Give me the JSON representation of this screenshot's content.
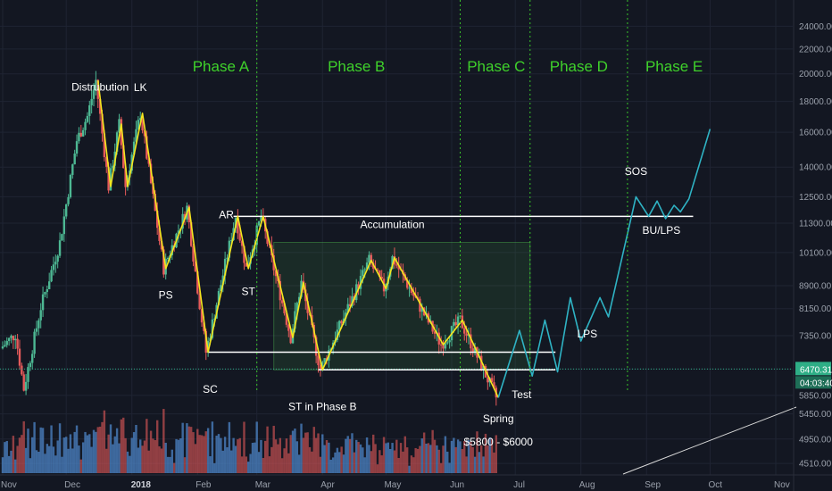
{
  "colors": {
    "background": "#131722",
    "grid": "#1f2433",
    "up_candle": "#4db893",
    "down_candle": "#e65a5a",
    "zigzag": "#f5e61e",
    "projection": "#2fb3c4",
    "phase_text": "#3fd12b",
    "phase_divider": "#39c42a",
    "level_line": "#ffffff",
    "axis_text": "#9aa0ab",
    "price_tag_bg": "#2eae86",
    "price_tag_text": "#ffffff"
  },
  "chart_data": {
    "type": "candlestick",
    "instrument_price_label": "6470.31",
    "countdown_label": "04:03:40",
    "y_scale": "log",
    "ylim": [
      4300,
      25000
    ],
    "y_ticks": [
      "24000.00",
      "22000.00",
      "20000.00",
      "18000.00",
      "16000.00",
      "14000.00",
      "12500.00",
      "11300.00",
      "10100.00",
      "8900.00",
      "8150.00",
      "7350.00",
      "6470.31",
      "5850.00",
      "5450.00",
      "4950.00",
      "4510.00"
    ],
    "x_ticks": [
      "Nov",
      "Dec",
      "2018",
      "Feb",
      "Mar",
      "Apr",
      "May",
      "Jun",
      "Jul",
      "Aug",
      "Sep",
      "Oct",
      "Nov"
    ],
    "phases": [
      "Phase A",
      "Phase B",
      "Phase C",
      "Phase D",
      "Phase E"
    ],
    "annotations": {
      "distribution": "Distrubution",
      "lk": "LK",
      "ps": "PS",
      "ar": "AR",
      "st": "ST",
      "sc": "SC",
      "st_phase_b": "ST in Phase B",
      "accumulation": "Accumulation",
      "spring": "Spring",
      "test": "Test",
      "range_note": "$5800 - $6000",
      "lps": "LPS",
      "sos": "SOS",
      "bu_lps": "BU/LPS"
    },
    "levels": {
      "resistance": 11600,
      "support_upper": 6900,
      "support_lower": 6450,
      "current": 6470.31
    },
    "zigzag_path": [
      {
        "t": "2017-12-16",
        "price": 19500
      },
      {
        "t": "2017-12-22",
        "price": 13000
      },
      {
        "t": "2017-12-27",
        "price": 16500
      },
      {
        "t": "2017-12-30",
        "price": 13000
      },
      {
        "t": "2018-01-06",
        "price": 17200
      },
      {
        "t": "2018-01-17",
        "price": 9500
      },
      {
        "t": "2018-01-28",
        "price": 12000
      },
      {
        "t": "2018-02-06",
        "price": 6900
      },
      {
        "t": "2018-02-20",
        "price": 11600
      },
      {
        "t": "2018-02-25",
        "price": 9500
      },
      {
        "t": "2018-03-04",
        "price": 11600
      },
      {
        "t": "2018-03-18",
        "price": 7300
      },
      {
        "t": "2018-03-23",
        "price": 9000
      },
      {
        "t": "2018-04-01",
        "price": 6450
      },
      {
        "t": "2018-04-24",
        "price": 9800
      },
      {
        "t": "2018-05-01",
        "price": 8800
      },
      {
        "t": "2018-05-05",
        "price": 9900
      },
      {
        "t": "2018-05-28",
        "price": 7100
      },
      {
        "t": "2018-06-06",
        "price": 7800
      },
      {
        "t": "2018-06-23",
        "price": 5800
      }
    ],
    "projection_path": [
      {
        "t": "2018-06-23",
        "price": 5800
      },
      {
        "t": "2018-07-03",
        "price": 7500
      },
      {
        "t": "2018-07-09",
        "price": 6300
      },
      {
        "t": "2018-07-15",
        "price": 7800
      },
      {
        "t": "2018-07-21",
        "price": 6400
      },
      {
        "t": "2018-07-27",
        "price": 8500
      },
      {
        "t": "2018-08-01",
        "price": 7200
      },
      {
        "t": "2018-08-10",
        "price": 8500
      },
      {
        "t": "2018-08-14",
        "price": 7900
      },
      {
        "t": "2018-08-27",
        "price": 12500
      },
      {
        "t": "2018-09-02",
        "price": 11600
      },
      {
        "t": "2018-09-06",
        "price": 12300
      },
      {
        "t": "2018-09-10",
        "price": 11500
      },
      {
        "t": "2018-09-14",
        "price": 12100
      },
      {
        "t": "2018-09-17",
        "price": 11800
      },
      {
        "t": "2018-09-21",
        "price": 12400
      },
      {
        "t": "2018-10-01",
        "price": 16200
      }
    ],
    "phase_boundaries": [
      "2018-03-01",
      "2018-06-05",
      "2018-07-08",
      "2018-08-23"
    ],
    "accumulation_box": {
      "start": "2018-03-09",
      "end": "2018-07-08",
      "low": 6450,
      "high": 10500
    },
    "resistance_span": {
      "start": "2018-02-18",
      "end": "2018-09-23"
    },
    "support_upper_span": {
      "start": "2018-02-06",
      "end": "2018-07-20"
    },
    "support_lower_span": {
      "start": "2018-03-30",
      "end": "2018-07-20"
    }
  }
}
